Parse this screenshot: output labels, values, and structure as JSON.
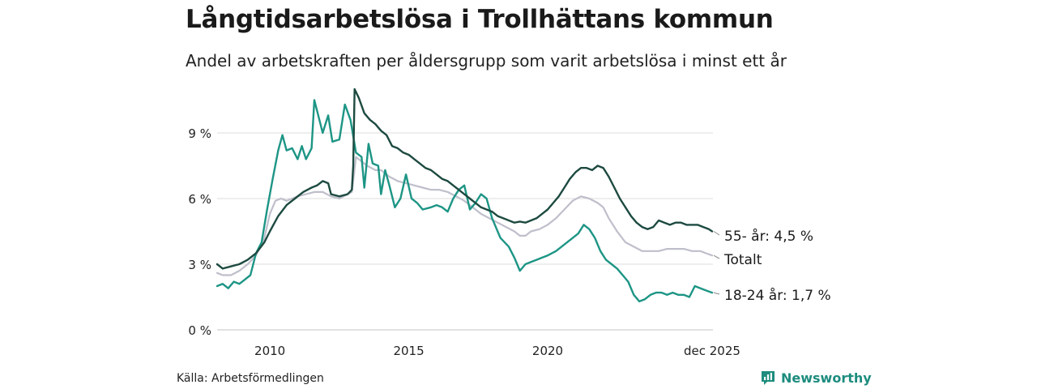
{
  "header": {
    "title": "Långtidsarbetslösa i Trollhättans kommun",
    "subtitle": "Andel av arbetskraften per åldersgrupp som varit arbetslösa i minst ett år"
  },
  "footer": {
    "source": "Källa: Arbetsförmedlingen",
    "brand": "Newsworthy"
  },
  "colors": {
    "older": "#1d4a40",
    "total": "#bfbfcc",
    "young": "#1d9585",
    "grid": "#dedede",
    "brand": "#1d8c7e"
  },
  "chart_data": {
    "type": "line",
    "title": "Långtidsarbetslösa i Trollhättans kommun",
    "xlabel": "",
    "ylabel": "",
    "xlim": [
      2008.1,
      2025.95
    ],
    "ylim": [
      0,
      11
    ],
    "y_ticks": [
      {
        "value": 0,
        "label": "0 %"
      },
      {
        "value": 3,
        "label": "3 %"
      },
      {
        "value": 6,
        "label": "6 %"
      },
      {
        "value": 9,
        "label": "9 %"
      }
    ],
    "x_ticks": [
      {
        "value": 2010,
        "label": "2010"
      },
      {
        "value": 2015,
        "label": "2015"
      },
      {
        "value": 2020,
        "label": "2020"
      },
      {
        "value": 2025.92,
        "label": "dec 2025"
      }
    ],
    "series": [
      {
        "name": "55- år",
        "end_label": "55- år: 4,5 %",
        "color": "#1d4a40",
        "points": [
          [
            2008.1,
            3.0
          ],
          [
            2008.3,
            2.8
          ],
          [
            2008.6,
            2.9
          ],
          [
            2008.9,
            3.0
          ],
          [
            2009.2,
            3.2
          ],
          [
            2009.5,
            3.5
          ],
          [
            2009.8,
            4.0
          ],
          [
            2010.0,
            4.5
          ],
          [
            2010.3,
            5.2
          ],
          [
            2010.6,
            5.7
          ],
          [
            2010.9,
            6.0
          ],
          [
            2011.2,
            6.3
          ],
          [
            2011.5,
            6.5
          ],
          [
            2011.7,
            6.6
          ],
          [
            2011.9,
            6.8
          ],
          [
            2012.1,
            6.7
          ],
          [
            2012.2,
            6.2
          ],
          [
            2012.5,
            6.1
          ],
          [
            2012.8,
            6.2
          ],
          [
            2012.95,
            6.4
          ],
          [
            2013.0,
            7.5
          ],
          [
            2013.05,
            11.0
          ],
          [
            2013.2,
            10.6
          ],
          [
            2013.4,
            9.9
          ],
          [
            2013.6,
            9.6
          ],
          [
            2013.8,
            9.4
          ],
          [
            2014.0,
            9.1
          ],
          [
            2014.2,
            8.9
          ],
          [
            2014.4,
            8.4
          ],
          [
            2014.6,
            8.3
          ],
          [
            2014.8,
            8.1
          ],
          [
            2015.0,
            8.0
          ],
          [
            2015.2,
            7.8
          ],
          [
            2015.4,
            7.6
          ],
          [
            2015.6,
            7.4
          ],
          [
            2015.8,
            7.3
          ],
          [
            2016.0,
            7.1
          ],
          [
            2016.2,
            6.9
          ],
          [
            2016.4,
            6.8
          ],
          [
            2016.6,
            6.6
          ],
          [
            2016.8,
            6.4
          ],
          [
            2017.0,
            6.2
          ],
          [
            2017.2,
            6.0
          ],
          [
            2017.4,
            5.8
          ],
          [
            2017.6,
            5.6
          ],
          [
            2017.8,
            5.5
          ],
          [
            2018.0,
            5.4
          ],
          [
            2018.2,
            5.2
          ],
          [
            2018.4,
            5.1
          ],
          [
            2018.6,
            5.0
          ],
          [
            2018.8,
            4.9
          ],
          [
            2019.0,
            4.95
          ],
          [
            2019.2,
            4.9
          ],
          [
            2019.4,
            5.0
          ],
          [
            2019.6,
            5.1
          ],
          [
            2019.8,
            5.3
          ],
          [
            2020.0,
            5.5
          ],
          [
            2020.2,
            5.8
          ],
          [
            2020.4,
            6.1
          ],
          [
            2020.6,
            6.5
          ],
          [
            2020.8,
            6.9
          ],
          [
            2021.0,
            7.2
          ],
          [
            2021.2,
            7.4
          ],
          [
            2021.4,
            7.4
          ],
          [
            2021.6,
            7.3
          ],
          [
            2021.8,
            7.5
          ],
          [
            2022.0,
            7.4
          ],
          [
            2022.2,
            7.0
          ],
          [
            2022.4,
            6.5
          ],
          [
            2022.6,
            6.0
          ],
          [
            2022.8,
            5.6
          ],
          [
            2023.0,
            5.2
          ],
          [
            2023.2,
            4.9
          ],
          [
            2023.4,
            4.7
          ],
          [
            2023.6,
            4.6
          ],
          [
            2023.8,
            4.7
          ],
          [
            2024.0,
            5.0
          ],
          [
            2024.2,
            4.9
          ],
          [
            2024.4,
            4.8
          ],
          [
            2024.6,
            4.9
          ],
          [
            2024.8,
            4.9
          ],
          [
            2025.0,
            4.8
          ],
          [
            2025.2,
            4.8
          ],
          [
            2025.4,
            4.8
          ],
          [
            2025.6,
            4.7
          ],
          [
            2025.8,
            4.6
          ],
          [
            2025.92,
            4.5
          ]
        ]
      },
      {
        "name": "Totalt",
        "end_label": "Totalt",
        "color": "#bfbfcc",
        "points": [
          [
            2008.1,
            2.6
          ],
          [
            2008.3,
            2.5
          ],
          [
            2008.6,
            2.5
          ],
          [
            2008.9,
            2.7
          ],
          [
            2009.2,
            3.0
          ],
          [
            2009.5,
            3.4
          ],
          [
            2009.8,
            4.2
          ],
          [
            2010.0,
            5.3
          ],
          [
            2010.2,
            5.9
          ],
          [
            2010.4,
            6.0
          ],
          [
            2010.6,
            5.9
          ],
          [
            2010.8,
            6.0
          ],
          [
            2011.0,
            6.1
          ],
          [
            2011.3,
            6.2
          ],
          [
            2011.6,
            6.3
          ],
          [
            2011.9,
            6.3
          ],
          [
            2012.2,
            6.1
          ],
          [
            2012.5,
            6.0
          ],
          [
            2012.8,
            6.2
          ],
          [
            2012.95,
            6.3
          ],
          [
            2013.0,
            6.8
          ],
          [
            2013.1,
            7.9
          ],
          [
            2013.3,
            7.7
          ],
          [
            2013.5,
            7.5
          ],
          [
            2013.8,
            7.3
          ],
          [
            2014.0,
            7.3
          ],
          [
            2014.3,
            7.0
          ],
          [
            2014.6,
            6.8
          ],
          [
            2014.9,
            6.7
          ],
          [
            2015.2,
            6.6
          ],
          [
            2015.5,
            6.5
          ],
          [
            2015.8,
            6.4
          ],
          [
            2016.1,
            6.4
          ],
          [
            2016.4,
            6.3
          ],
          [
            2016.7,
            6.1
          ],
          [
            2017.0,
            5.9
          ],
          [
            2017.3,
            5.6
          ],
          [
            2017.6,
            5.3
          ],
          [
            2017.9,
            5.1
          ],
          [
            2018.2,
            4.9
          ],
          [
            2018.5,
            4.7
          ],
          [
            2018.8,
            4.5
          ],
          [
            2019.0,
            4.3
          ],
          [
            2019.2,
            4.3
          ],
          [
            2019.4,
            4.5
          ],
          [
            2019.7,
            4.6
          ],
          [
            2020.0,
            4.8
          ],
          [
            2020.3,
            5.1
          ],
          [
            2020.6,
            5.5
          ],
          [
            2020.9,
            5.9
          ],
          [
            2021.2,
            6.1
          ],
          [
            2021.5,
            6.0
          ],
          [
            2021.8,
            5.8
          ],
          [
            2022.0,
            5.6
          ],
          [
            2022.2,
            5.1
          ],
          [
            2022.5,
            4.5
          ],
          [
            2022.8,
            4.0
          ],
          [
            2023.1,
            3.8
          ],
          [
            2023.4,
            3.6
          ],
          [
            2023.7,
            3.6
          ],
          [
            2024.0,
            3.6
          ],
          [
            2024.3,
            3.7
          ],
          [
            2024.6,
            3.7
          ],
          [
            2024.9,
            3.7
          ],
          [
            2025.2,
            3.6
          ],
          [
            2025.5,
            3.6
          ],
          [
            2025.7,
            3.5
          ],
          [
            2025.92,
            3.4
          ]
        ]
      },
      {
        "name": "18-24 år",
        "end_label": "18-24 år: 1,7 %",
        "color": "#1d9585",
        "points": [
          [
            2008.1,
            2.0
          ],
          [
            2008.3,
            2.1
          ],
          [
            2008.5,
            1.9
          ],
          [
            2008.7,
            2.2
          ],
          [
            2008.9,
            2.1
          ],
          [
            2009.1,
            2.3
          ],
          [
            2009.3,
            2.5
          ],
          [
            2009.5,
            3.5
          ],
          [
            2009.7,
            4.0
          ],
          [
            2009.9,
            5.5
          ],
          [
            2010.1,
            6.9
          ],
          [
            2010.3,
            8.2
          ],
          [
            2010.45,
            8.9
          ],
          [
            2010.6,
            8.2
          ],
          [
            2010.8,
            8.3
          ],
          [
            2011.0,
            7.8
          ],
          [
            2011.15,
            8.4
          ],
          [
            2011.3,
            7.8
          ],
          [
            2011.5,
            8.3
          ],
          [
            2011.6,
            10.5
          ],
          [
            2011.8,
            9.5
          ],
          [
            2011.9,
            9.0
          ],
          [
            2012.1,
            9.8
          ],
          [
            2012.25,
            8.6
          ],
          [
            2012.5,
            8.7
          ],
          [
            2012.7,
            10.3
          ],
          [
            2012.9,
            9.6
          ],
          [
            2013.1,
            8.1
          ],
          [
            2013.3,
            7.9
          ],
          [
            2013.4,
            6.5
          ],
          [
            2013.55,
            8.5
          ],
          [
            2013.7,
            7.6
          ],
          [
            2013.9,
            7.5
          ],
          [
            2014.0,
            6.2
          ],
          [
            2014.15,
            7.3
          ],
          [
            2014.3,
            6.6
          ],
          [
            2014.5,
            5.6
          ],
          [
            2014.7,
            6.0
          ],
          [
            2014.9,
            7.1
          ],
          [
            2015.1,
            6.0
          ],
          [
            2015.3,
            5.8
          ],
          [
            2015.5,
            5.5
          ],
          [
            2015.8,
            5.6
          ],
          [
            2016.0,
            5.7
          ],
          [
            2016.2,
            5.6
          ],
          [
            2016.4,
            5.4
          ],
          [
            2016.6,
            6.0
          ],
          [
            2016.8,
            6.4
          ],
          [
            2017.0,
            6.6
          ],
          [
            2017.2,
            5.5
          ],
          [
            2017.4,
            5.8
          ],
          [
            2017.6,
            6.2
          ],
          [
            2017.8,
            6.0
          ],
          [
            2018.0,
            5.1
          ],
          [
            2018.3,
            4.2
          ],
          [
            2018.6,
            3.8
          ],
          [
            2018.8,
            3.3
          ],
          [
            2019.0,
            2.7
          ],
          [
            2019.2,
            3.0
          ],
          [
            2019.4,
            3.1
          ],
          [
            2019.6,
            3.2
          ],
          [
            2019.8,
            3.3
          ],
          [
            2020.0,
            3.4
          ],
          [
            2020.3,
            3.6
          ],
          [
            2020.6,
            3.9
          ],
          [
            2020.9,
            4.2
          ],
          [
            2021.1,
            4.4
          ],
          [
            2021.3,
            4.8
          ],
          [
            2021.5,
            4.6
          ],
          [
            2021.7,
            4.2
          ],
          [
            2021.9,
            3.6
          ],
          [
            2022.1,
            3.2
          ],
          [
            2022.3,
            3.0
          ],
          [
            2022.5,
            2.8
          ],
          [
            2022.7,
            2.5
          ],
          [
            2022.9,
            2.2
          ],
          [
            2023.1,
            1.6
          ],
          [
            2023.3,
            1.3
          ],
          [
            2023.5,
            1.4
          ],
          [
            2023.7,
            1.6
          ],
          [
            2023.9,
            1.7
          ],
          [
            2024.1,
            1.7
          ],
          [
            2024.3,
            1.6
          ],
          [
            2024.5,
            1.7
          ],
          [
            2024.7,
            1.6
          ],
          [
            2024.9,
            1.6
          ],
          [
            2025.1,
            1.5
          ],
          [
            2025.3,
            2.0
          ],
          [
            2025.5,
            1.9
          ],
          [
            2025.7,
            1.8
          ],
          [
            2025.92,
            1.7
          ]
        ]
      }
    ]
  }
}
